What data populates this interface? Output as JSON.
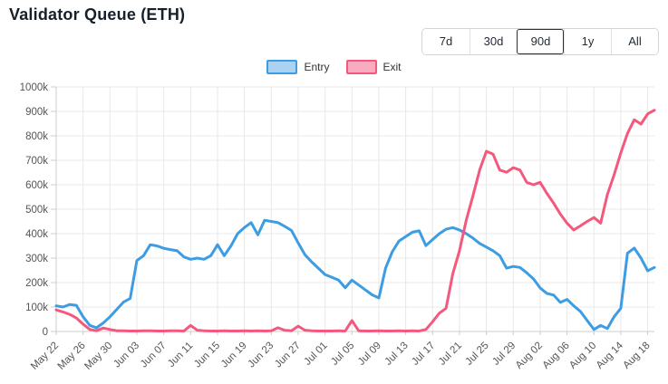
{
  "chart_data": {
    "type": "line",
    "title": "Validator Queue (ETH)",
    "x_axis": {
      "tick_labels": [
        "May 22",
        "May 26",
        "May 30",
        "Jun 03",
        "Jun 07",
        "Jun 11",
        "Jun 15",
        "Jun 19",
        "Jun 23",
        "Jun 27",
        "Jul 01",
        "Jul 05",
        "Jul 09",
        "Jul 13",
        "Jul 17",
        "Jul 21",
        "Jul 25",
        "Jul 29",
        "Aug 02",
        "Aug 06",
        "Aug 10",
        "Aug 14",
        "Aug 18"
      ],
      "tick_interval_days": 4,
      "points_are_daily": true
    },
    "y_axis": {
      "tick_labels_top_to_bottom": [
        "1000k",
        "900k",
        "800k",
        "700k",
        "600k",
        "500k",
        "400k",
        "300k",
        "200k",
        "100k",
        "0"
      ],
      "ylim_k": [
        0,
        1000
      ]
    },
    "grid": true,
    "legend_position": "top-center",
    "series": [
      {
        "name": "Entry",
        "line_color": "#3d9ce2",
        "swatch_fill": "#a9d2f3",
        "values_k": [
          105,
          100,
          110,
          107,
          60,
          25,
          15,
          35,
          60,
          90,
          120,
          135,
          290,
          310,
          355,
          350,
          340,
          335,
          330,
          305,
          295,
          300,
          295,
          310,
          355,
          310,
          350,
          400,
          425,
          445,
          395,
          455,
          450,
          445,
          430,
          413,
          362,
          314,
          285,
          259,
          233,
          222,
          210,
          179,
          210,
          190,
          170,
          150,
          137,
          259,
          326,
          370,
          388,
          406,
          412,
          351,
          376,
          400,
          418,
          425,
          415,
          400,
          382,
          360,
          345,
          330,
          310,
          259,
          266,
          262,
          240,
          215,
          178,
          156,
          149,
          119,
          131,
          105,
          82,
          45,
          8,
          25,
          12,
          60,
          95,
          320,
          341,
          300,
          248,
          262
        ]
      },
      {
        "name": "Exit",
        "line_color": "#f4587c",
        "swatch_fill": "#f9abbf",
        "values_k": [
          88,
          80,
          70,
          55,
          30,
          8,
          3,
          14,
          8,
          3,
          3,
          2,
          2,
          3,
          3,
          2,
          2,
          3,
          3,
          2,
          25,
          5,
          3,
          2,
          2,
          3,
          2,
          2,
          3,
          2,
          3,
          2,
          3,
          15,
          5,
          3,
          22,
          5,
          3,
          2,
          2,
          2,
          3,
          2,
          45,
          3,
          2,
          2,
          3,
          2,
          2,
          3,
          2,
          3,
          2,
          8,
          40,
          75,
          95,
          235,
          330,
          455,
          555,
          660,
          737,
          725,
          660,
          651,
          670,
          660,
          610,
          600,
          610,
          565,
          525,
          480,
          443,
          415,
          432,
          450,
          466,
          443,
          560,
          640,
          730,
          810,
          866,
          848,
          890,
          905
        ]
      }
    ]
  },
  "range_selector": {
    "options": [
      "7d",
      "30d",
      "90d",
      "1y",
      "All"
    ],
    "selected": "90d"
  },
  "colors": {
    "grid": "#e8e8e8",
    "axis": "#cccccc",
    "tick_text": "#555555",
    "title_text": "#15202b"
  }
}
